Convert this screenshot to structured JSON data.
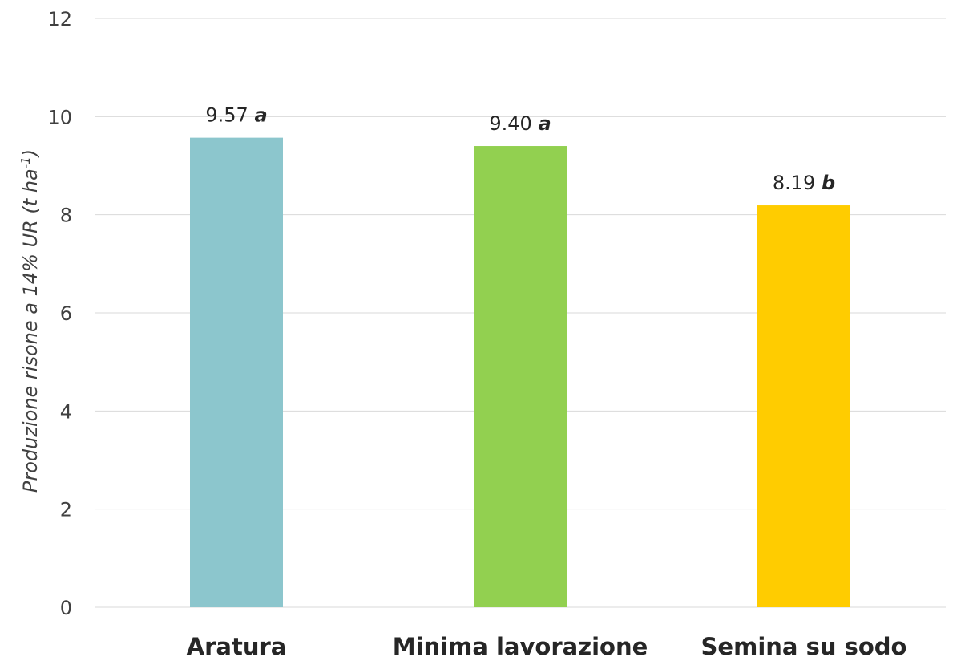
{
  "chart_data": {
    "type": "bar",
    "title": "",
    "xlabel": "",
    "ylabel": "Produzione risone a 14% UR (t ha",
    "ylabel_sup": "-1",
    "ylabel_end": ")",
    "categories": [
      "Aratura",
      "Minima lavorazione",
      "Semina su sodo"
    ],
    "values": [
      9.57,
      9.4,
      8.19
    ],
    "value_labels": [
      "9.57",
      "9.40",
      "8.19"
    ],
    "significance_letters": [
      "a",
      "a",
      "b"
    ],
    "colors": [
      "#8cc6cd",
      "#92d050",
      "#ffcc00"
    ],
    "ylim": [
      0,
      12
    ],
    "yticks": [
      0,
      2,
      4,
      6,
      8,
      10,
      12
    ],
    "ytick_labels": [
      "0",
      "2",
      "4",
      "6",
      "8",
      "10",
      "12"
    ],
    "grid": true,
    "legend": "none"
  }
}
